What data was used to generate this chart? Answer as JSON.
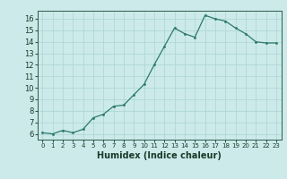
{
  "x": [
    0,
    1,
    2,
    3,
    4,
    5,
    6,
    7,
    8,
    9,
    10,
    11,
    12,
    13,
    14,
    15,
    16,
    17,
    18,
    19,
    20,
    21,
    22,
    23
  ],
  "y": [
    6.1,
    6.0,
    6.3,
    6.1,
    6.4,
    7.4,
    7.7,
    8.4,
    8.5,
    9.4,
    10.3,
    12.0,
    13.6,
    15.2,
    14.7,
    14.4,
    16.3,
    16.0,
    15.8,
    15.2,
    14.7,
    14.0,
    13.9,
    13.9
  ],
  "xlabel": "Humidex (Indice chaleur)",
  "xlim": [
    -0.5,
    23.5
  ],
  "ylim": [
    5.5,
    16.7
  ],
  "yticks": [
    6,
    7,
    8,
    9,
    10,
    11,
    12,
    13,
    14,
    15,
    16
  ],
  "xticks": [
    0,
    1,
    2,
    3,
    4,
    5,
    6,
    7,
    8,
    9,
    10,
    11,
    12,
    13,
    14,
    15,
    16,
    17,
    18,
    19,
    20,
    21,
    22,
    23
  ],
  "line_color": "#2d7a6a",
  "bg_color": "#cceaea",
  "grid_color": "#b0d8d8",
  "fig_bg": "#cceaea",
  "ylabel_color": "#2d7a6a"
}
